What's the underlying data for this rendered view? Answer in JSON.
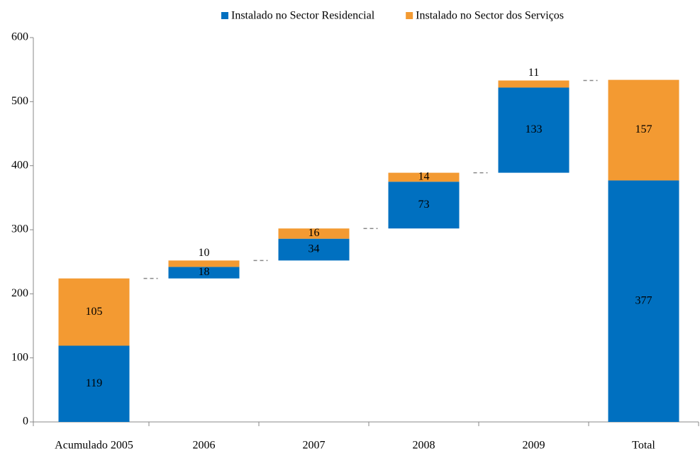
{
  "chart_data": {
    "type": "waterfall",
    "categories": [
      "Acumulado 2005",
      "2006",
      "2007",
      "2008",
      "2009",
      "Total"
    ],
    "series": [
      {
        "name": "Instalado no Sector Residencial",
        "color": "#0070c0",
        "values": [
          119,
          18,
          34,
          73,
          133,
          377
        ]
      },
      {
        "name": "Instalado no Sector dos Serviços",
        "color": "#f39a32",
        "values": [
          105,
          10,
          16,
          14,
          11,
          157
        ]
      }
    ],
    "ylim": [
      0,
      600
    ],
    "yticks": [
      0,
      100,
      200,
      300,
      400,
      500,
      600
    ],
    "legend": "top"
  }
}
